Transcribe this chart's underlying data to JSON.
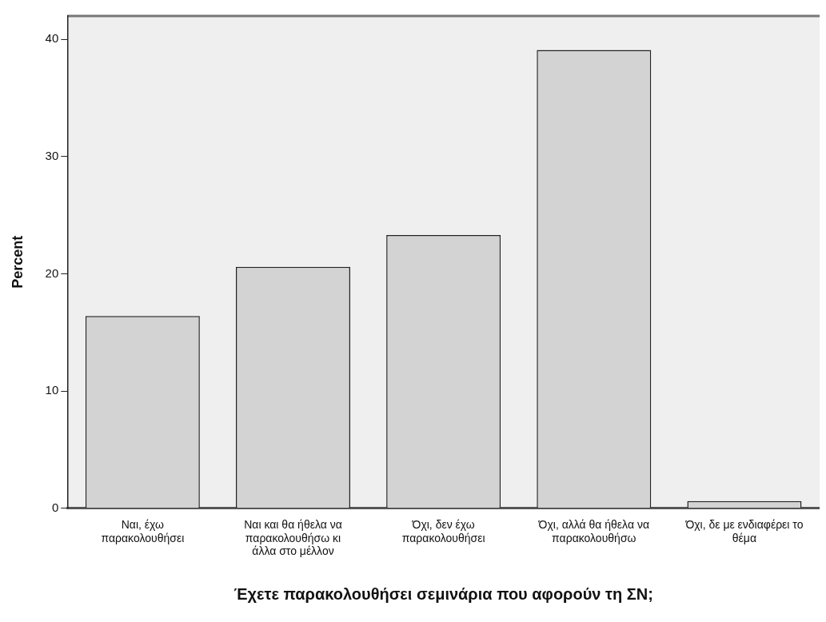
{
  "chart_data": {
    "type": "bar",
    "xlabel": "Έχετε παρακολουθήσει σεμινάρια που αφορούν τη ΣΝ;",
    "ylabel": "Percent",
    "categories": [
      "Ναι, έχω παρακολουθήσει",
      "Ναι και θα ήθελα να παρακολουθήσω κι άλλα στο μέλλον",
      "Όχι, δεν έχω παρακολουθήσει",
      "Όχι, αλλά θα ήθελα να παρακολουθήσω",
      "Όχι, δε με ενδιαφέρει το θέμα"
    ],
    "values": [
      16.4,
      20.6,
      23.3,
      39.1,
      0.6
    ],
    "color": "#d3d3d3",
    "ylim": [
      0,
      42
    ],
    "yticks": [
      0,
      10,
      20,
      30,
      40
    ],
    "grid": false,
    "legend": false
  }
}
